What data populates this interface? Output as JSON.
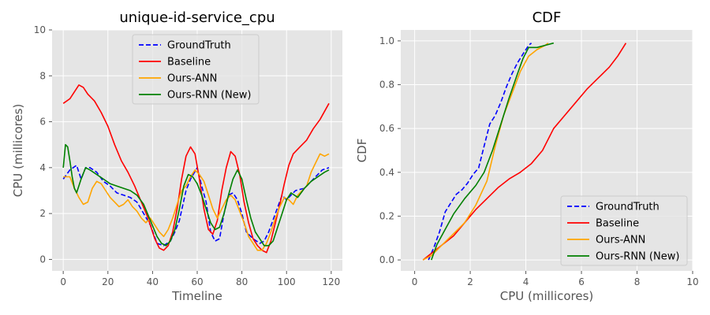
{
  "figure": {
    "panels": [
      "left",
      "right"
    ]
  },
  "colors": {
    "background": "#e5e5e5",
    "grid": "#ffffff",
    "GroundTruth": "#0000ff",
    "Baseline": "#ff0000",
    "Ours-ANN": "#ffa500",
    "Ours-RNN (New)": "#008000"
  },
  "chart_data": [
    {
      "type": "line",
      "title": "unique-id-service_cpu",
      "xlabel": "Timeline",
      "ylabel": "CPU (millicores)",
      "xlim": [
        -5,
        125
      ],
      "ylim": [
        -0.5,
        10
      ],
      "xticks": [
        0,
        20,
        40,
        60,
        80,
        100,
        120
      ],
      "yticks": [
        0,
        2,
        4,
        6,
        8,
        10
      ],
      "grid": true,
      "legend": "top-center",
      "series": [
        {
          "name": "GroundTruth",
          "style": "dashed",
          "x": [
            0,
            3,
            6,
            8,
            10,
            12,
            15,
            18,
            21,
            24,
            27,
            30,
            33,
            36,
            39,
            42,
            45,
            48,
            50,
            52,
            55,
            57,
            60,
            62,
            64,
            66,
            68,
            70,
            72,
            74,
            76,
            78,
            80,
            82,
            85,
            88,
            90,
            92,
            95,
            98,
            100,
            104,
            108,
            112,
            116,
            119
          ],
          "y": [
            3.5,
            3.9,
            4.1,
            3.5,
            4.0,
            4.0,
            3.8,
            3.4,
            3.2,
            2.9,
            2.8,
            2.7,
            2.5,
            2.0,
            1.5,
            0.7,
            0.6,
            0.8,
            1.2,
            1.7,
            3.0,
            3.5,
            4.0,
            3.2,
            2.5,
            1.2,
            0.8,
            0.9,
            2.0,
            2.8,
            2.9,
            2.6,
            2.0,
            1.2,
            0.9,
            0.7,
            0.8,
            1.2,
            2.0,
            2.8,
            2.6,
            3.0,
            3.1,
            3.5,
            3.9,
            4.0
          ]
        },
        {
          "name": "Baseline",
          "x": [
            0,
            3,
            5,
            7,
            9,
            11,
            14,
            17,
            20,
            23,
            26,
            29,
            32,
            35,
            38,
            41,
            43,
            45,
            47,
            49,
            51,
            53,
            55,
            57,
            59,
            61,
            63,
            65,
            67,
            69,
            71,
            73,
            75,
            77,
            79,
            81,
            83,
            85,
            87,
            89,
            91,
            93,
            95,
            97,
            99,
            101,
            103,
            106,
            109,
            112,
            115,
            119
          ],
          "y": [
            6.8,
            7.0,
            7.3,
            7.6,
            7.5,
            7.2,
            6.9,
            6.4,
            5.8,
            5.0,
            4.3,
            3.8,
            3.2,
            2.5,
            1.8,
            0.9,
            0.5,
            0.4,
            0.6,
            1.2,
            2.2,
            3.5,
            4.5,
            4.9,
            4.6,
            3.5,
            2.2,
            1.3,
            1.1,
            1.7,
            3.0,
            4.0,
            4.7,
            4.5,
            3.7,
            2.5,
            1.6,
            0.9,
            0.6,
            0.4,
            0.3,
            0.8,
            1.6,
            2.4,
            3.3,
            4.1,
            4.6,
            4.9,
            5.2,
            5.7,
            6.1,
            6.8
          ]
        },
        {
          "name": "Ours-ANN",
          "x": [
            0,
            3,
            5,
            7,
            9,
            11,
            13,
            15,
            17,
            19,
            21,
            23,
            25,
            27,
            29,
            31,
            33,
            35,
            37,
            39,
            41,
            43,
            45,
            47,
            49,
            51,
            53,
            55,
            57,
            59,
            61,
            63,
            65,
            67,
            69,
            71,
            73,
            75,
            77,
            79,
            81,
            83,
            85,
            87,
            89,
            91,
            93,
            95,
            97,
            99,
            101,
            103,
            105,
            107,
            109,
            111,
            113,
            115,
            117,
            119
          ],
          "y": [
            3.6,
            3.6,
            3.1,
            2.7,
            2.4,
            2.5,
            3.1,
            3.4,
            3.3,
            3.0,
            2.7,
            2.5,
            2.3,
            2.4,
            2.6,
            2.3,
            2.1,
            1.8,
            1.6,
            1.8,
            1.5,
            1.2,
            1.0,
            1.3,
            1.8,
            2.4,
            3.0,
            3.2,
            3.6,
            3.9,
            3.7,
            3.4,
            2.8,
            2.2,
            1.8,
            2.2,
            2.6,
            2.8,
            2.6,
            2.1,
            1.6,
            1.0,
            0.7,
            0.4,
            0.4,
            0.7,
            1.2,
            1.8,
            2.3,
            2.7,
            2.6,
            2.4,
            2.8,
            3.0,
            3.2,
            3.8,
            4.2,
            4.6,
            4.5,
            4.6
          ]
        },
        {
          "name": "Ours-RNN (New)",
          "x": [
            0,
            1,
            2,
            3,
            4,
            5,
            6,
            8,
            10,
            12,
            15,
            18,
            21,
            24,
            27,
            30,
            33,
            36,
            39,
            42,
            44,
            46,
            48,
            50,
            52,
            54,
            56,
            58,
            60,
            62,
            64,
            66,
            68,
            70,
            72,
            74,
            76,
            78,
            80,
            82,
            84,
            86,
            88,
            90,
            92,
            94,
            96,
            98,
            100,
            102,
            105,
            108,
            111,
            114,
            117,
            119
          ],
          "y": [
            4.0,
            5.0,
            4.9,
            4.3,
            3.6,
            3.1,
            2.9,
            3.5,
            4.0,
            3.9,
            3.7,
            3.5,
            3.3,
            3.2,
            3.1,
            3.0,
            2.8,
            2.4,
            1.7,
            1.0,
            0.7,
            0.6,
            0.8,
            1.3,
            2.2,
            3.2,
            3.7,
            3.6,
            3.3,
            2.8,
            2.2,
            1.6,
            1.3,
            1.4,
            2.0,
            2.8,
            3.5,
            3.9,
            3.5,
            2.6,
            1.8,
            1.2,
            0.9,
            0.6,
            0.6,
            0.8,
            1.4,
            2.0,
            2.6,
            2.9,
            2.7,
            3.1,
            3.4,
            3.6,
            3.8,
            3.9
          ]
        }
      ]
    },
    {
      "type": "line",
      "title": "CDF",
      "xlabel": "CPU (millicores)",
      "ylabel": "CDF",
      "xlim": [
        -0.5,
        10
      ],
      "ylim": [
        -0.05,
        1.05
      ],
      "xticks": [
        0,
        2,
        4,
        6,
        8,
        10
      ],
      "yticks": [
        0.0,
        0.2,
        0.4,
        0.6,
        0.8,
        1.0
      ],
      "grid": true,
      "legend": "bottom-right",
      "series": [
        {
          "name": "GroundTruth",
          "style": "dashed",
          "x": [
            0.5,
            0.7,
            0.9,
            1.1,
            1.3,
            1.5,
            1.7,
            1.9,
            2.1,
            2.3,
            2.5,
            2.7,
            2.9,
            3.1,
            3.3,
            3.5,
            3.7,
            3.9,
            4.1,
            4.2
          ],
          "y": [
            0.0,
            0.06,
            0.13,
            0.22,
            0.26,
            0.3,
            0.32,
            0.35,
            0.39,
            0.42,
            0.52,
            0.62,
            0.66,
            0.72,
            0.79,
            0.85,
            0.9,
            0.94,
            0.98,
            0.99
          ]
        },
        {
          "name": "Baseline",
          "x": [
            0.3,
            0.6,
            1.0,
            1.4,
            1.8,
            2.2,
            2.6,
            3.0,
            3.4,
            3.8,
            4.2,
            4.6,
            5.0,
            5.4,
            5.8,
            6.2,
            6.6,
            7.0,
            7.3,
            7.5,
            7.6
          ],
          "y": [
            0.0,
            0.03,
            0.07,
            0.11,
            0.17,
            0.23,
            0.28,
            0.33,
            0.37,
            0.4,
            0.44,
            0.5,
            0.6,
            0.66,
            0.72,
            0.78,
            0.83,
            0.88,
            0.93,
            0.97,
            0.99
          ]
        },
        {
          "name": "Ours-ANN",
          "x": [
            0.3,
            0.6,
            1.0,
            1.4,
            1.8,
            2.2,
            2.6,
            2.9,
            3.2,
            3.5,
            3.8,
            4.1,
            4.4,
            4.7,
            4.8
          ],
          "y": [
            0.0,
            0.02,
            0.07,
            0.12,
            0.17,
            0.25,
            0.36,
            0.52,
            0.66,
            0.76,
            0.86,
            0.93,
            0.96,
            0.98,
            0.99
          ]
        },
        {
          "name": "Ours-RNN (New)",
          "x": [
            0.6,
            0.8,
            1.1,
            1.4,
            1.8,
            2.2,
            2.5,
            2.8,
            3.1,
            3.4,
            3.7,
            3.9,
            4.1,
            4.4,
            4.7,
            5.0
          ],
          "y": [
            0.0,
            0.07,
            0.14,
            0.21,
            0.28,
            0.34,
            0.4,
            0.5,
            0.62,
            0.74,
            0.85,
            0.92,
            0.97,
            0.97,
            0.98,
            0.99
          ]
        }
      ]
    }
  ]
}
